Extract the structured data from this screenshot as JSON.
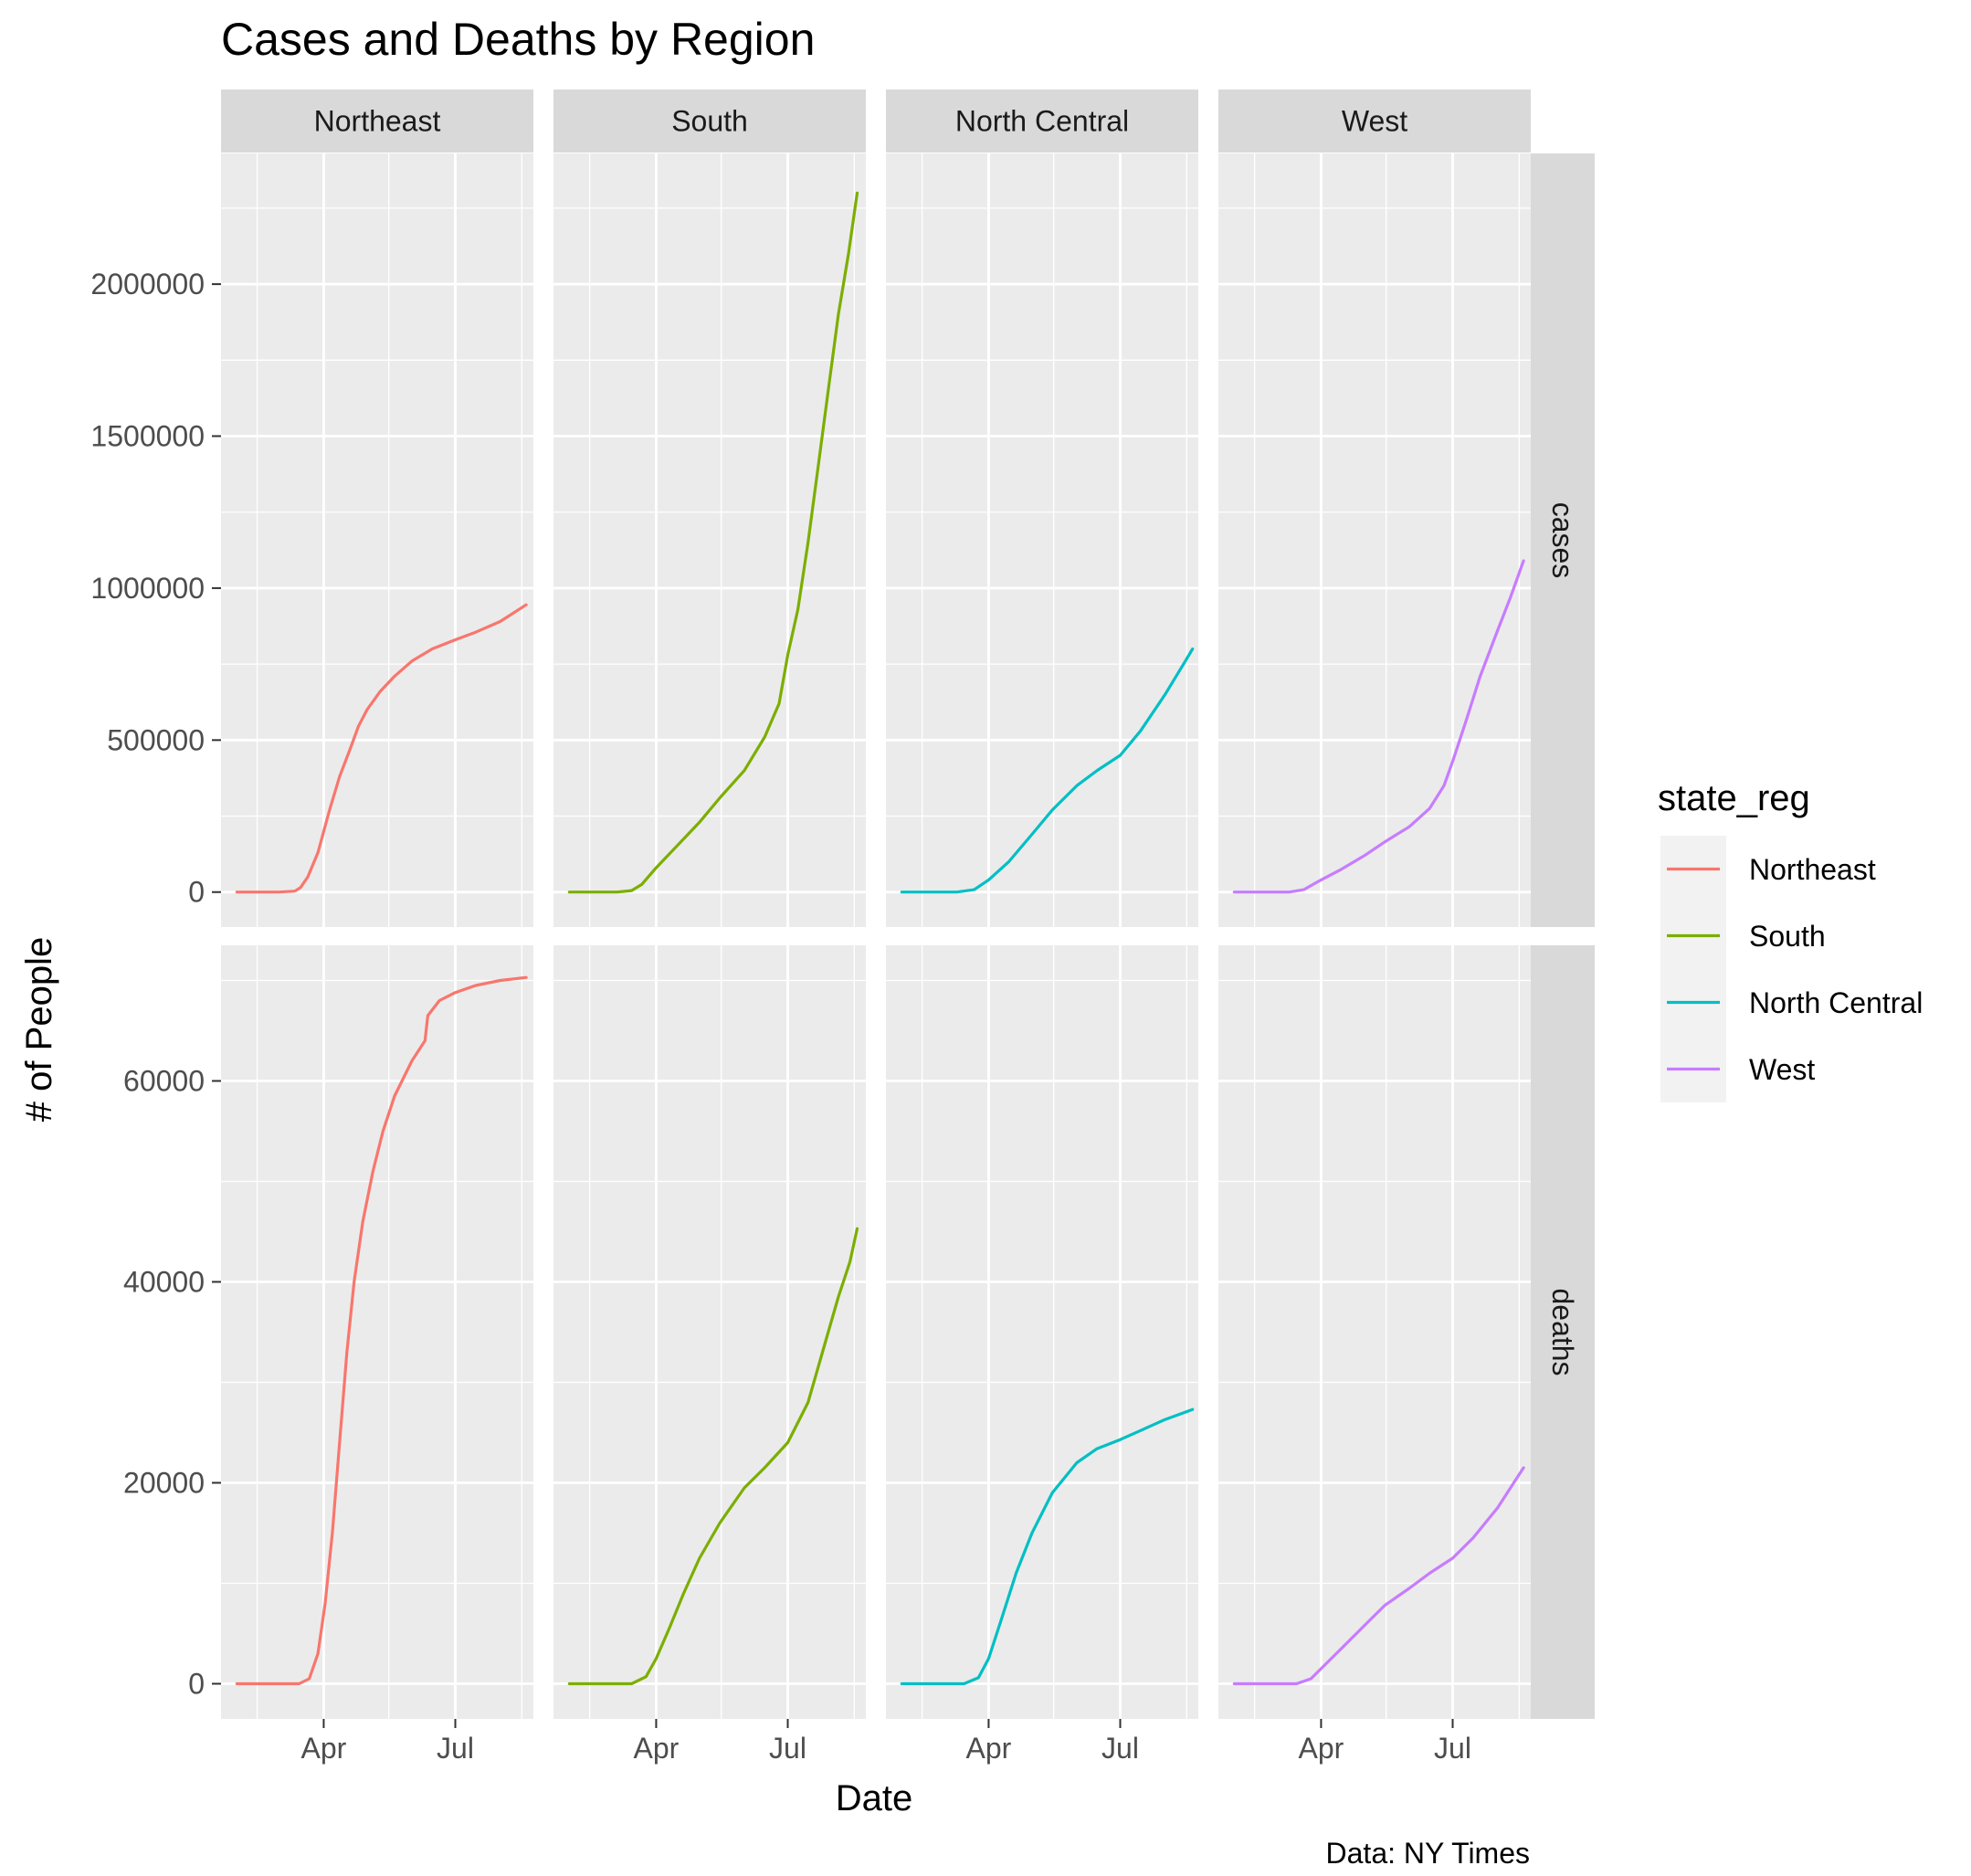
{
  "chart_data": {
    "type": "line",
    "title": "Cases and Deaths by Region",
    "xlabel": "Date",
    "ylabel": "# of People",
    "caption": "Data: NY Times",
    "facet_columns": [
      "Northeast",
      "South",
      "North Central",
      "West"
    ],
    "facet_rows": [
      "cases",
      "deaths"
    ],
    "x_ticks": [
      "Apr",
      "Jul"
    ],
    "x_range": [
      "2020-01-21",
      "2020-08-24"
    ],
    "x_tick_dates": [
      "2020-04-01",
      "2020-07-01"
    ],
    "x_minor_dates": [
      "2020-02-15",
      "2020-05-16",
      "2020-08-16"
    ],
    "rows": [
      {
        "name": "cases",
        "ylim": [
          -115000,
          2430000
        ],
        "y_ticks": [
          0,
          500000,
          1000000,
          1500000,
          2000000
        ],
        "y_tick_labels": [
          "0",
          "500000",
          "1000000",
          "1500000",
          "2000000"
        ]
      },
      {
        "name": "deaths",
        "ylim": [
          -3500,
          73500
        ],
        "y_ticks": [
          0,
          20000,
          40000,
          60000
        ],
        "y_tick_labels": [
          "0",
          "20000",
          "40000",
          "60000"
        ]
      }
    ],
    "legend": {
      "title": "state_reg",
      "position": "right",
      "items": [
        "Northeast",
        "South",
        "North Central",
        "West"
      ]
    },
    "grid": true,
    "colors": {
      "Northeast": "#F8766D",
      "South": "#7CAE00",
      "North Central": "#00BFC4",
      "West": "#C77CFF"
    },
    "series": [
      {
        "name": "Northeast",
        "row": "cases",
        "points": [
          [
            "2020-02-01",
            0
          ],
          [
            "2020-03-01",
            0
          ],
          [
            "2020-03-12",
            3000
          ],
          [
            "2020-03-16",
            15000
          ],
          [
            "2020-03-21",
            50000
          ],
          [
            "2020-03-28",
            130000
          ],
          [
            "2020-04-05",
            270000
          ],
          [
            "2020-04-12",
            380000
          ],
          [
            "2020-04-20",
            480000
          ],
          [
            "2020-04-25",
            545000
          ],
          [
            "2020-05-01",
            600000
          ],
          [
            "2020-05-10",
            660000
          ],
          [
            "2020-05-20",
            710000
          ],
          [
            "2020-06-01",
            760000
          ],
          [
            "2020-06-15",
            800000
          ],
          [
            "2020-07-01",
            830000
          ],
          [
            "2020-07-15",
            855000
          ],
          [
            "2020-08-01",
            890000
          ],
          [
            "2020-08-19",
            945000
          ]
        ]
      },
      {
        "name": "South",
        "row": "cases",
        "points": [
          [
            "2020-02-01",
            0
          ],
          [
            "2020-03-05",
            0
          ],
          [
            "2020-03-15",
            5000
          ],
          [
            "2020-03-22",
            25000
          ],
          [
            "2020-04-01",
            80000
          ],
          [
            "2020-04-15",
            150000
          ],
          [
            "2020-05-01",
            230000
          ],
          [
            "2020-05-15",
            310000
          ],
          [
            "2020-06-01",
            400000
          ],
          [
            "2020-06-15",
            510000
          ],
          [
            "2020-06-25",
            620000
          ],
          [
            "2020-07-01",
            780000
          ],
          [
            "2020-07-08",
            930000
          ],
          [
            "2020-07-15",
            1150000
          ],
          [
            "2020-07-22",
            1400000
          ],
          [
            "2020-07-29",
            1650000
          ],
          [
            "2020-08-05",
            1900000
          ],
          [
            "2020-08-12",
            2100000
          ],
          [
            "2020-08-18",
            2300000
          ]
        ]
      },
      {
        "name": "North Central",
        "row": "cases",
        "points": [
          [
            "2020-02-01",
            0
          ],
          [
            "2020-03-10",
            0
          ],
          [
            "2020-03-22",
            8000
          ],
          [
            "2020-04-01",
            40000
          ],
          [
            "2020-04-15",
            100000
          ],
          [
            "2020-05-01",
            190000
          ],
          [
            "2020-05-15",
            270000
          ],
          [
            "2020-06-01",
            350000
          ],
          [
            "2020-06-15",
            400000
          ],
          [
            "2020-07-01",
            450000
          ],
          [
            "2020-07-15",
            530000
          ],
          [
            "2020-08-01",
            650000
          ],
          [
            "2020-08-15",
            760000
          ],
          [
            "2020-08-20",
            800000
          ]
        ]
      },
      {
        "name": "West",
        "row": "cases",
        "points": [
          [
            "2020-02-01",
            0
          ],
          [
            "2020-03-10",
            0
          ],
          [
            "2020-03-20",
            8000
          ],
          [
            "2020-04-01",
            40000
          ],
          [
            "2020-04-15",
            75000
          ],
          [
            "2020-05-01",
            120000
          ],
          [
            "2020-05-15",
            165000
          ],
          [
            "2020-06-01",
            215000
          ],
          [
            "2020-06-15",
            275000
          ],
          [
            "2020-06-25",
            350000
          ],
          [
            "2020-07-01",
            430000
          ],
          [
            "2020-07-10",
            560000
          ],
          [
            "2020-07-20",
            710000
          ],
          [
            "2020-08-01",
            860000
          ],
          [
            "2020-08-10",
            970000
          ],
          [
            "2020-08-19",
            1090000
          ]
        ]
      },
      {
        "name": "Northeast",
        "row": "deaths",
        "points": [
          [
            "2020-02-01",
            0
          ],
          [
            "2020-03-15",
            0
          ],
          [
            "2020-03-22",
            500
          ],
          [
            "2020-03-28",
            3000
          ],
          [
            "2020-04-02",
            8000
          ],
          [
            "2020-04-07",
            15000
          ],
          [
            "2020-04-12",
            24000
          ],
          [
            "2020-04-17",
            33000
          ],
          [
            "2020-04-22",
            40000
          ],
          [
            "2020-04-28",
            46000
          ],
          [
            "2020-05-05",
            51000
          ],
          [
            "2020-05-12",
            55000
          ],
          [
            "2020-05-20",
            58500
          ],
          [
            "2020-06-01",
            62000
          ],
          [
            "2020-06-10",
            64000
          ],
          [
            "2020-06-12",
            66500
          ],
          [
            "2020-06-20",
            68000
          ],
          [
            "2020-07-01",
            68800
          ],
          [
            "2020-07-15",
            69500
          ],
          [
            "2020-08-01",
            70000
          ],
          [
            "2020-08-19",
            70300
          ]
        ]
      },
      {
        "name": "South",
        "row": "deaths",
        "points": [
          [
            "2020-02-01",
            0
          ],
          [
            "2020-03-15",
            0
          ],
          [
            "2020-03-25",
            700
          ],
          [
            "2020-04-01",
            2500
          ],
          [
            "2020-04-10",
            5500
          ],
          [
            "2020-04-20",
            9000
          ],
          [
            "2020-05-01",
            12500
          ],
          [
            "2020-05-15",
            16000
          ],
          [
            "2020-06-01",
            19500
          ],
          [
            "2020-06-15",
            21500
          ],
          [
            "2020-07-01",
            24000
          ],
          [
            "2020-07-15",
            28000
          ],
          [
            "2020-07-25",
            33000
          ],
          [
            "2020-08-05",
            38500
          ],
          [
            "2020-08-13",
            42000
          ],
          [
            "2020-08-18",
            45300
          ]
        ]
      },
      {
        "name": "North Central",
        "row": "deaths",
        "points": [
          [
            "2020-02-01",
            0
          ],
          [
            "2020-03-15",
            0
          ],
          [
            "2020-03-25",
            600
          ],
          [
            "2020-04-01",
            2500
          ],
          [
            "2020-04-10",
            6500
          ],
          [
            "2020-04-20",
            11000
          ],
          [
            "2020-05-01",
            15000
          ],
          [
            "2020-05-15",
            19000
          ],
          [
            "2020-06-01",
            22000
          ],
          [
            "2020-06-15",
            23400
          ],
          [
            "2020-07-01",
            24300
          ],
          [
            "2020-07-15",
            25200
          ],
          [
            "2020-08-01",
            26300
          ],
          [
            "2020-08-20",
            27300
          ]
        ]
      },
      {
        "name": "West",
        "row": "deaths",
        "points": [
          [
            "2020-02-01",
            0
          ],
          [
            "2020-03-15",
            0
          ],
          [
            "2020-03-25",
            500
          ],
          [
            "2020-04-01",
            1500
          ],
          [
            "2020-04-15",
            3500
          ],
          [
            "2020-05-01",
            5800
          ],
          [
            "2020-05-15",
            7800
          ],
          [
            "2020-06-01",
            9500
          ],
          [
            "2020-06-15",
            11000
          ],
          [
            "2020-07-01",
            12500
          ],
          [
            "2020-07-15",
            14500
          ],
          [
            "2020-08-01",
            17500
          ],
          [
            "2020-08-10",
            19500
          ],
          [
            "2020-08-19",
            21500
          ]
        ]
      }
    ]
  }
}
